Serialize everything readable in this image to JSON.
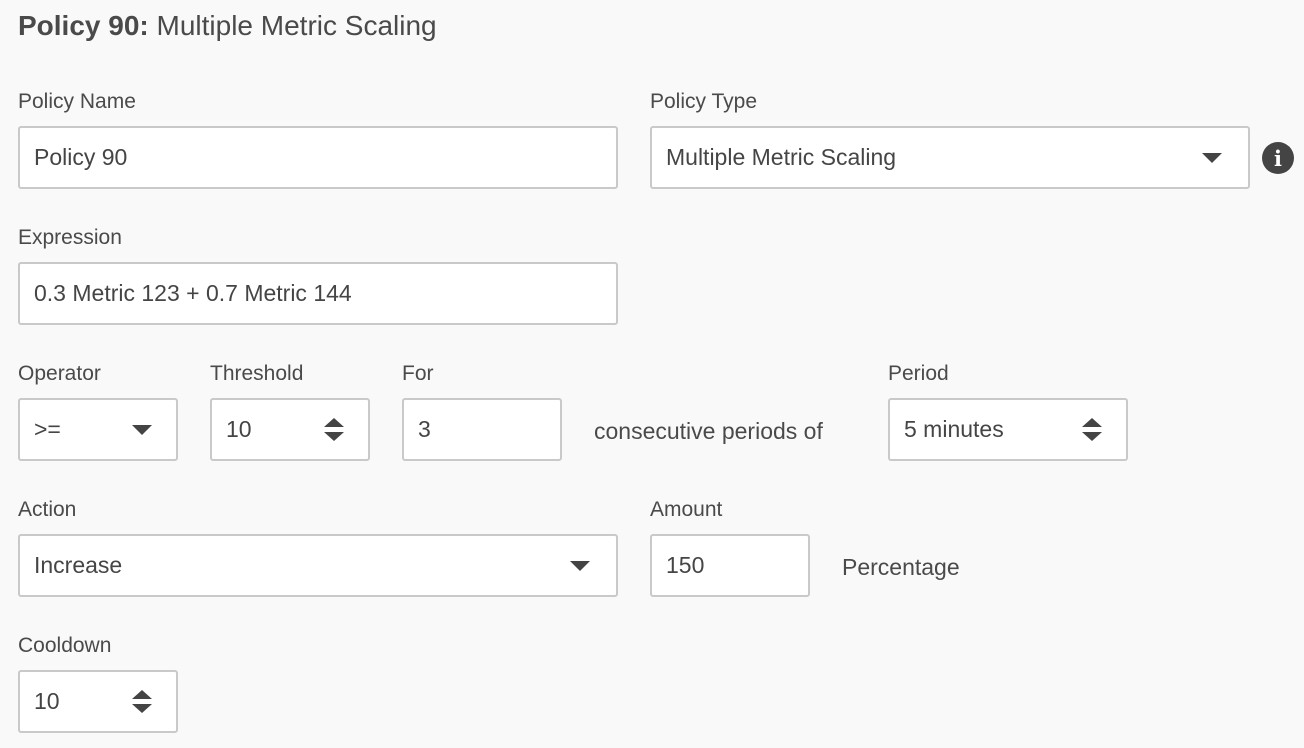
{
  "header": {
    "title_bold": "Policy 90:",
    "title_rest": "Multiple Metric Scaling"
  },
  "policy_name": {
    "label": "Policy Name",
    "value": "Policy 90"
  },
  "policy_type": {
    "label": "Policy Type",
    "value": "Multiple Metric Scaling",
    "info_icon": "info-circle-icon"
  },
  "expression": {
    "label": "Expression",
    "value": "0.3 Metric 123 + 0.7 Metric 144"
  },
  "operator": {
    "label": "Operator",
    "value": ">="
  },
  "threshold": {
    "label": "Threshold",
    "value": "10"
  },
  "for": {
    "label": "For",
    "value": "3"
  },
  "consecutive_text": "consecutive periods of",
  "period": {
    "label": "Period",
    "value": "5 minutes"
  },
  "action": {
    "label": "Action",
    "value": "Increase"
  },
  "amount": {
    "label": "Amount",
    "value": "150",
    "unit": "Percentage"
  },
  "cooldown": {
    "label": "Cooldown",
    "value": "10"
  }
}
